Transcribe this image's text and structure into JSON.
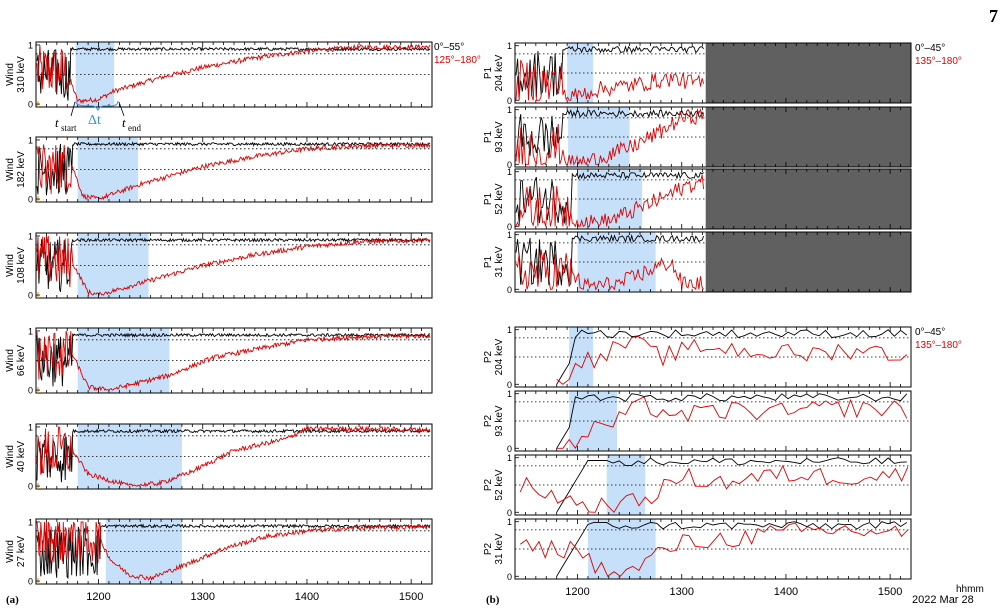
{
  "page_number": "7",
  "left_legend": {
    "black": "0°–55°",
    "red": "125°–180°"
  },
  "right_legend": {
    "black": "0°–45°",
    "red": "135°–180°"
  },
  "annot": {
    "t_start": "t",
    "t_start_sub": "start",
    "delta_t": "Δt",
    "t_end": "t",
    "t_end_sub": "end"
  },
  "panel_a_label": "(a)",
  "panel_b_label": "(b)",
  "xaxis_unit": "hhmm",
  "date_label": "2022 Mar 28",
  "colors": {
    "black_series": "#000000",
    "red_series": "#e00000",
    "shade": "#c6e0fa",
    "nodata": "#606060",
    "annot": "#3b8fd9",
    "orange_tick": "#f0a020"
  },
  "chart_data": [
    {
      "type": "line",
      "instrument": "Wind",
      "energy": "310 keV",
      "xlim": [
        1140,
        1520
      ],
      "ylim": [
        -0.05,
        1.05
      ],
      "yticks": [
        "0",
        "1"
      ],
      "interval": [
        1178,
        1215
      ],
      "series": [
        {
          "name": "0°–55°",
          "color": "black"
        },
        {
          "name": "125°–180°",
          "color": "red"
        }
      ],
      "red_profile": [
        [
          1140,
          0.55
        ],
        [
          1170,
          0.55
        ],
        [
          1180,
          0.05
        ],
        [
          1200,
          0.08
        ],
        [
          1215,
          0.22
        ],
        [
          1260,
          0.45
        ],
        [
          1300,
          0.62
        ],
        [
          1350,
          0.78
        ],
        [
          1400,
          0.9
        ],
        [
          1450,
          0.96
        ],
        [
          1520,
          0.97
        ]
      ]
    },
    {
      "type": "line",
      "instrument": "Wind",
      "energy": "182 keV",
      "xlim": [
        1140,
        1520
      ],
      "ylim": [
        -0.05,
        1.05
      ],
      "yticks": [
        "0",
        "1"
      ],
      "interval": [
        1180,
        1238
      ],
      "red_profile": [
        [
          1140,
          0.5
        ],
        [
          1175,
          0.55
        ],
        [
          1185,
          0.05
        ],
        [
          1200,
          0.0
        ],
        [
          1240,
          0.25
        ],
        [
          1300,
          0.55
        ],
        [
          1350,
          0.72
        ],
        [
          1400,
          0.85
        ],
        [
          1450,
          0.9
        ],
        [
          1520,
          0.92
        ]
      ]
    },
    {
      "type": "line",
      "instrument": "Wind",
      "energy": "108 keV",
      "xlim": [
        1140,
        1520
      ],
      "ylim": [
        -0.05,
        1.05
      ],
      "yticks": [
        "0",
        "1"
      ],
      "interval": [
        1180,
        1248
      ],
      "red_profile": [
        [
          1140,
          0.6
        ],
        [
          1175,
          0.55
        ],
        [
          1190,
          0.05
        ],
        [
          1200,
          0.0
        ],
        [
          1250,
          0.25
        ],
        [
          1300,
          0.5
        ],
        [
          1350,
          0.68
        ],
        [
          1400,
          0.82
        ],
        [
          1450,
          0.9
        ],
        [
          1520,
          0.93
        ]
      ]
    },
    {
      "type": "line",
      "instrument": "Wind",
      "energy": "66 keV",
      "xlim": [
        1140,
        1520
      ],
      "ylim": [
        -0.05,
        1.05
      ],
      "yticks": [
        "0",
        "1"
      ],
      "interval": [
        1180,
        1268
      ],
      "red_profile": [
        [
          1140,
          0.6
        ],
        [
          1175,
          0.6
        ],
        [
          1190,
          0.05
        ],
        [
          1210,
          0.0
        ],
        [
          1268,
          0.25
        ],
        [
          1310,
          0.55
        ],
        [
          1360,
          0.72
        ],
        [
          1400,
          0.85
        ],
        [
          1450,
          0.9
        ],
        [
          1520,
          0.92
        ]
      ]
    },
    {
      "type": "line",
      "instrument": "Wind",
      "energy": "40 keV",
      "xlim": [
        1140,
        1520
      ],
      "ylim": [
        -0.05,
        1.05
      ],
      "yticks": [
        "0",
        "1"
      ],
      "interval": [
        1180,
        1280
      ],
      "red_profile": [
        [
          1140,
          0.55
        ],
        [
          1175,
          0.6
        ],
        [
          1190,
          0.2
        ],
        [
          1230,
          0.0
        ],
        [
          1260,
          0.05
        ],
        [
          1290,
          0.25
        ],
        [
          1330,
          0.6
        ],
        [
          1380,
          0.8
        ],
        [
          1400,
          0.97
        ],
        [
          1450,
          0.97
        ],
        [
          1520,
          0.95
        ]
      ]
    },
    {
      "type": "line",
      "instrument": "Wind",
      "energy": "27 keV",
      "xlim": [
        1140,
        1520
      ],
      "ylim": [
        -0.05,
        1.05
      ],
      "yticks": [
        "0",
        "1"
      ],
      "interval": [
        1207,
        1280
      ],
      "red_profile": [
        [
          1140,
          0.75
        ],
        [
          1200,
          0.75
        ],
        [
          1212,
          0.35
        ],
        [
          1230,
          0.1
        ],
        [
          1250,
          0.05
        ],
        [
          1280,
          0.25
        ],
        [
          1320,
          0.55
        ],
        [
          1360,
          0.75
        ],
        [
          1400,
          0.85
        ],
        [
          1450,
          0.9
        ],
        [
          1520,
          0.92
        ]
      ]
    },
    {
      "type": "line",
      "instrument": "P1",
      "energy": "204 keV",
      "xlim": [
        1140,
        1520
      ],
      "ylim": [
        -0.05,
        1.05
      ],
      "yticks": [
        "0",
        "1"
      ],
      "interval": [
        1190,
        1215
      ],
      "nodata_from": 1323,
      "red_profile": [
        [
          1145,
          0.3
        ],
        [
          1185,
          0.3
        ],
        [
          1190,
          0.02
        ],
        [
          1200,
          0.1
        ],
        [
          1220,
          0.2
        ],
        [
          1260,
          0.3
        ],
        [
          1290,
          0.4
        ],
        [
          1320,
          0.3
        ]
      ]
    },
    {
      "type": "line",
      "instrument": "P1",
      "energy": "93 keV",
      "xlim": [
        1140,
        1520
      ],
      "ylim": [
        -0.05,
        1.05
      ],
      "yticks": [
        "0",
        "1"
      ],
      "interval": [
        1191,
        1250
      ],
      "nodata_from": 1323,
      "red_profile": [
        [
          1145,
          0.3
        ],
        [
          1185,
          0.3
        ],
        [
          1190,
          0.02
        ],
        [
          1210,
          0.05
        ],
        [
          1250,
          0.3
        ],
        [
          1280,
          0.6
        ],
        [
          1300,
          0.85
        ],
        [
          1320,
          0.9
        ]
      ]
    },
    {
      "type": "line",
      "instrument": "P1",
      "energy": "52 keV",
      "xlim": [
        1140,
        1520
      ],
      "ylim": [
        -0.05,
        1.05
      ],
      "yticks": [
        "0",
        "1"
      ],
      "interval": [
        1200,
        1262
      ],
      "nodata_from": 1323,
      "red_profile": [
        [
          1145,
          0.3
        ],
        [
          1190,
          0.3
        ],
        [
          1200,
          0.05
        ],
        [
          1230,
          0.1
        ],
        [
          1262,
          0.35
        ],
        [
          1290,
          0.6
        ],
        [
          1305,
          0.75
        ],
        [
          1320,
          0.8
        ]
      ]
    },
    {
      "type": "line",
      "instrument": "P1",
      "energy": "31 keV",
      "xlim": [
        1140,
        1520
      ],
      "ylim": [
        -0.05,
        1.05
      ],
      "yticks": [
        "0",
        "1"
      ],
      "interval": [
        1200,
        1275
      ],
      "nodata_from": 1323,
      "red_profile": [
        [
          1145,
          0.3
        ],
        [
          1195,
          0.3
        ],
        [
          1205,
          0.05
        ],
        [
          1240,
          0.1
        ],
        [
          1275,
          0.4
        ],
        [
          1290,
          0.5
        ],
        [
          1300,
          0.1
        ],
        [
          1320,
          0.1
        ]
      ]
    },
    {
      "type": "line",
      "instrument": "P2",
      "energy": "204 keV",
      "xlim": [
        1140,
        1520
      ],
      "ylim": [
        -0.05,
        1.05
      ],
      "yticks": [
        "0",
        "1"
      ],
      "interval": [
        1192,
        1215
      ],
      "red_profile": [
        [
          1185,
          0.05
        ],
        [
          1200,
          0.5
        ],
        [
          1215,
          0.4
        ],
        [
          1250,
          0.8
        ],
        [
          1280,
          0.5
        ],
        [
          1320,
          0.7
        ],
        [
          1370,
          0.6
        ],
        [
          1420,
          0.55
        ],
        [
          1470,
          0.65
        ],
        [
          1520,
          0.5
        ]
      ]
    },
    {
      "type": "line",
      "instrument": "P2",
      "energy": "93 keV",
      "xlim": [
        1140,
        1520
      ],
      "ylim": [
        -0.05,
        1.05
      ],
      "yticks": [
        "0",
        "1"
      ],
      "interval": [
        1192,
        1238
      ],
      "red_profile": [
        [
          1185,
          0.05
        ],
        [
          1200,
          0.1
        ],
        [
          1220,
          0.4
        ],
        [
          1240,
          0.5
        ],
        [
          1260,
          0.8
        ],
        [
          1300,
          0.6
        ],
        [
          1350,
          0.7
        ],
        [
          1400,
          0.65
        ],
        [
          1450,
          0.75
        ],
        [
          1520,
          0.7
        ]
      ]
    },
    {
      "type": "line",
      "instrument": "P2",
      "energy": "52 keV",
      "xlim": [
        1140,
        1520
      ],
      "ylim": [
        -0.05,
        1.05
      ],
      "yticks": [
        "0",
        "1"
      ],
      "interval": [
        1228,
        1265
      ],
      "red_profile": [
        [
          1145,
          0.5
        ],
        [
          1180,
          0.3
        ],
        [
          1210,
          0.1
        ],
        [
          1250,
          0.15
        ],
        [
          1270,
          0.3
        ],
        [
          1300,
          0.65
        ],
        [
          1340,
          0.55
        ],
        [
          1400,
          0.7
        ],
        [
          1450,
          0.65
        ],
        [
          1520,
          0.7
        ]
      ]
    },
    {
      "type": "line",
      "instrument": "P2",
      "energy": "31 keV",
      "xlim": [
        1140,
        1520
      ],
      "ylim": [
        -0.05,
        1.05
      ],
      "yticks": [
        "0",
        "1"
      ],
      "interval": [
        1210,
        1275
      ],
      "red_profile": [
        [
          1145,
          0.5
        ],
        [
          1200,
          0.5
        ],
        [
          1230,
          0.0
        ],
        [
          1250,
          0.05
        ],
        [
          1275,
          0.4
        ],
        [
          1300,
          0.6
        ],
        [
          1350,
          0.7
        ],
        [
          1400,
          0.8
        ],
        [
          1450,
          0.85
        ],
        [
          1520,
          0.8
        ]
      ]
    }
  ],
  "x_ticks": [
    "1200",
    "1300",
    "1400",
    "1500"
  ],
  "x_tick_values": [
    1200,
    1300,
    1400,
    1500
  ]
}
